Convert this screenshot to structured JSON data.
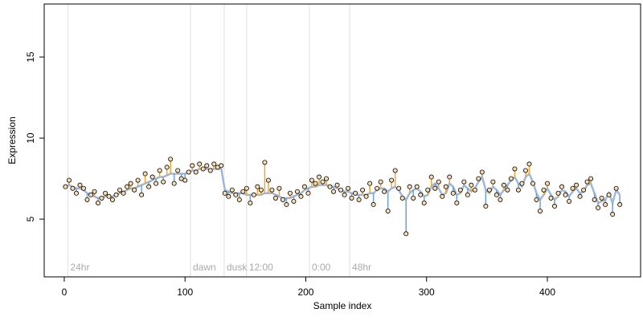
{
  "chart_data": {
    "type": "scatter",
    "xlabel": "Sample index",
    "ylabel": "Expression",
    "xlim": [
      -16.6,
      477.2
    ],
    "ylim": [
      1.44,
      18.27
    ],
    "xticks": [
      0,
      100,
      200,
      300,
      400
    ],
    "yticks": [
      5,
      10,
      15
    ],
    "x": [
      1,
      4,
      7,
      10,
      13,
      16,
      19,
      22,
      25,
      28,
      31,
      34,
      37,
      40,
      43,
      46,
      49,
      52,
      55,
      58,
      61,
      64,
      67,
      70,
      73,
      76,
      79,
      82,
      85,
      88,
      91,
      94,
      97,
      100,
      103,
      106,
      109,
      112,
      115,
      118,
      121,
      124,
      127,
      130,
      133,
      136,
      139,
      142,
      145,
      148,
      151,
      154,
      157,
      160,
      163,
      166,
      169,
      172,
      175,
      178,
      181,
      184,
      187,
      190,
      193,
      196,
      199,
      202,
      205,
      208,
      211,
      214,
      217,
      220,
      223,
      226,
      229,
      232,
      235,
      238,
      241,
      244,
      247,
      250,
      253,
      256,
      259,
      262,
      265,
      268,
      271,
      274,
      277,
      280,
      283,
      286,
      289,
      292,
      295,
      298,
      301,
      304,
      307,
      310,
      313,
      316,
      319,
      322,
      325,
      328,
      331,
      334,
      337,
      340,
      343,
      346,
      349,
      352,
      355,
      358,
      361,
      364,
      367,
      370,
      373,
      376,
      379,
      382,
      385,
      388,
      391,
      394,
      397,
      400,
      403,
      406,
      409,
      412,
      415,
      418,
      421,
      424,
      427,
      430,
      433,
      436,
      439,
      442,
      445,
      448,
      451,
      454,
      457,
      460
    ],
    "series": [
      {
        "color": "#f7dcb4",
        "values": [
          7.0,
          7.4,
          6.9,
          6.6,
          7.1,
          6.9,
          6.2,
          6.5,
          6.7,
          6.0,
          6.3,
          6.6,
          6.4,
          6.2,
          6.5,
          6.8,
          6.6,
          7.0,
          7.2,
          6.8,
          7.4,
          6.5,
          7.8,
          7.0,
          7.6,
          7.2,
          8.0,
          7.3,
          8.2,
          8.7,
          7.2,
          8.0,
          7.5,
          7.4,
          7.9,
          8.3,
          7.9,
          8.4,
          8.1,
          8.3,
          8.0,
          8.4,
          8.2,
          8.3,
          6.6,
          6.4,
          6.8,
          6.5,
          6.2,
          6.7,
          6.9,
          6.0,
          6.5,
          7.0,
          6.8,
          8.5,
          7.4,
          6.8,
          6.3,
          6.9,
          6.2,
          5.9,
          6.6,
          6.1,
          6.7,
          6.4,
          7.0,
          6.6,
          7.4,
          7.2,
          7.6,
          7.3,
          7.5,
          7.0,
          6.7,
          7.1,
          6.8,
          6.5,
          6.9,
          6.3,
          6.6,
          6.2,
          6.8,
          6.4,
          7.2,
          5.9,
          6.9,
          7.3,
          6.7,
          5.5,
          7.4,
          8.0,
          6.9,
          6.3,
          4.1,
          7.0,
          6.3,
          7.0,
          6.5,
          6.0,
          6.8,
          7.6,
          6.9,
          7.3,
          6.4,
          7.0,
          7.6,
          6.6,
          6.0,
          6.8,
          7.3,
          6.5,
          7.1,
          6.8,
          7.5,
          7.9,
          5.8,
          6.8,
          7.3,
          6.5,
          6.2,
          7.1,
          6.8,
          7.5,
          8.1,
          6.8,
          7.2,
          8.0,
          8.4,
          7.2,
          6.2,
          5.5,
          6.8,
          7.2,
          6.3,
          5.8,
          6.6,
          7.0,
          6.5,
          6.1,
          6.9,
          7.1,
          6.4,
          6.8,
          7.3,
          7.5,
          6.2,
          5.7,
          6.3,
          5.9,
          6.5,
          5.3,
          6.9,
          5.9
        ]
      },
      {
        "color": "#9db8dc",
        "values": [
          7.0,
          7.1,
          7.0,
          6.9,
          6.9,
          6.8,
          6.6,
          6.5,
          6.4,
          6.3,
          6.3,
          6.4,
          6.4,
          6.4,
          6.5,
          6.6,
          6.7,
          6.8,
          6.9,
          6.9,
          7.0,
          7.1,
          7.2,
          7.3,
          7.4,
          7.5,
          7.6,
          7.6,
          7.7,
          7.8,
          7.8,
          7.8,
          7.8,
          7.8,
          7.9,
          8.0,
          8.0,
          8.1,
          8.1,
          8.1,
          8.1,
          8.1,
          8.1,
          8.1,
          6.8,
          6.7,
          6.6,
          6.6,
          6.6,
          6.6,
          6.5,
          6.5,
          6.5,
          6.5,
          6.5,
          6.6,
          6.6,
          6.6,
          6.5,
          6.4,
          6.3,
          6.3,
          6.3,
          6.4,
          6.5,
          6.6,
          6.8,
          6.9,
          7.0,
          7.0,
          7.1,
          7.1,
          7.1,
          7.0,
          7.0,
          6.9,
          6.8,
          6.7,
          6.7,
          6.6,
          6.5,
          6.5,
          6.5,
          6.5,
          6.6,
          6.6,
          6.8,
          6.9,
          6.9,
          6.7,
          6.9,
          7.0,
          6.8,
          6.4,
          6.2,
          6.6,
          6.8,
          6.9,
          6.7,
          6.4,
          6.5,
          7.0,
          7.2,
          6.9,
          6.5,
          6.6,
          7.2,
          7.0,
          6.5,
          6.6,
          7.1,
          6.9,
          6.7,
          6.9,
          7.3,
          7.6,
          6.8,
          6.6,
          7.0,
          6.8,
          6.5,
          6.8,
          7.1,
          7.4,
          7.6,
          7.2,
          7.0,
          7.6,
          7.8,
          7.3,
          6.6,
          6.2,
          6.5,
          6.9,
          6.5,
          6.2,
          6.4,
          6.8,
          6.7,
          6.4,
          6.7,
          6.9,
          6.6,
          6.7,
          7.1,
          7.2,
          6.6,
          6.0,
          6.1,
          6.2,
          6.6,
          6.0,
          6.8,
          6.5
        ]
      }
    ],
    "positive_color": "#f5a623",
    "negative_color": "#6f9fd8",
    "annotations": [
      {
        "text": "24hr",
        "x": 3,
        "y": 2
      },
      {
        "text": "dawn",
        "x": 104.5,
        "y": 2
      },
      {
        "text": "dusk",
        "x": 132.4,
        "y": 2
      },
      {
        "text": "12:00",
        "x": 151,
        "y": 2
      },
      {
        "text": "0:00",
        "x": 203,
        "y": 2
      },
      {
        "text": "48hr",
        "x": 236.3,
        "y": 2
      }
    ]
  }
}
